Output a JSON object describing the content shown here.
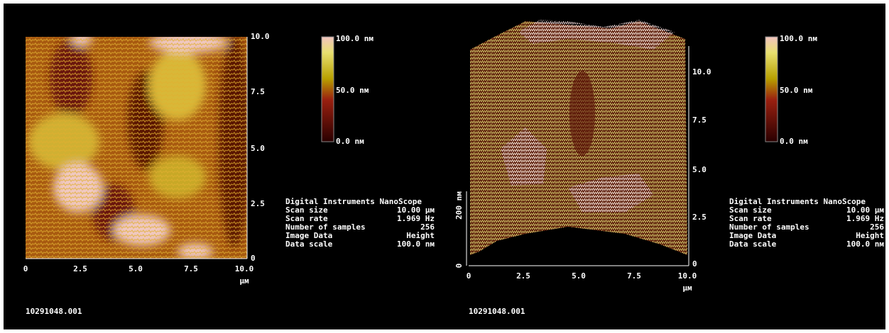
{
  "panels": [
    {
      "x_ticks": [
        "0",
        "2.5",
        "5.0",
        "7.5",
        "10.0"
      ],
      "y_ticks": [
        "10.0",
        "7.5",
        "5.0",
        "2.5",
        "0"
      ],
      "x_unit": "µм",
      "colorbar": [
        "100.0 nм",
        "50.0 nм",
        "0.0 nм"
      ],
      "info": {
        "title": "Digital Instruments NanoScope",
        "rows": [
          [
            "Scan size",
            "10.00 µм"
          ],
          [
            "Scan rate",
            "1.969 Hz"
          ],
          [
            "Number of samples",
            "256"
          ],
          [
            "Image Data",
            "Height"
          ],
          [
            "Data scale",
            "100.0 nм"
          ]
        ]
      },
      "file": "10291048.001"
    },
    {
      "x_ticks": [
        "0",
        "2.5",
        "5.0",
        "7.5",
        "10.0"
      ],
      "y_ticks": [
        "10.0",
        "7.5",
        "5.0",
        "2.5",
        "0"
      ],
      "x_unit": "µм",
      "z_ticks": [
        "0"
      ],
      "z_label": "200 nм",
      "colorbar": [
        "100.0 nм",
        "50.0 nм",
        "0.0 nм"
      ],
      "info": {
        "title": "Digital Instruments NanoScope",
        "rows": [
          [
            "Scan size",
            "10.00 µм"
          ],
          [
            "Scan rate",
            "1.969 Hz"
          ],
          [
            "Number of samples",
            "256"
          ],
          [
            "Image Data",
            "Height"
          ],
          [
            "Data scale",
            "100.0 nм"
          ]
        ]
      },
      "file": "10291048.001"
    }
  ]
}
